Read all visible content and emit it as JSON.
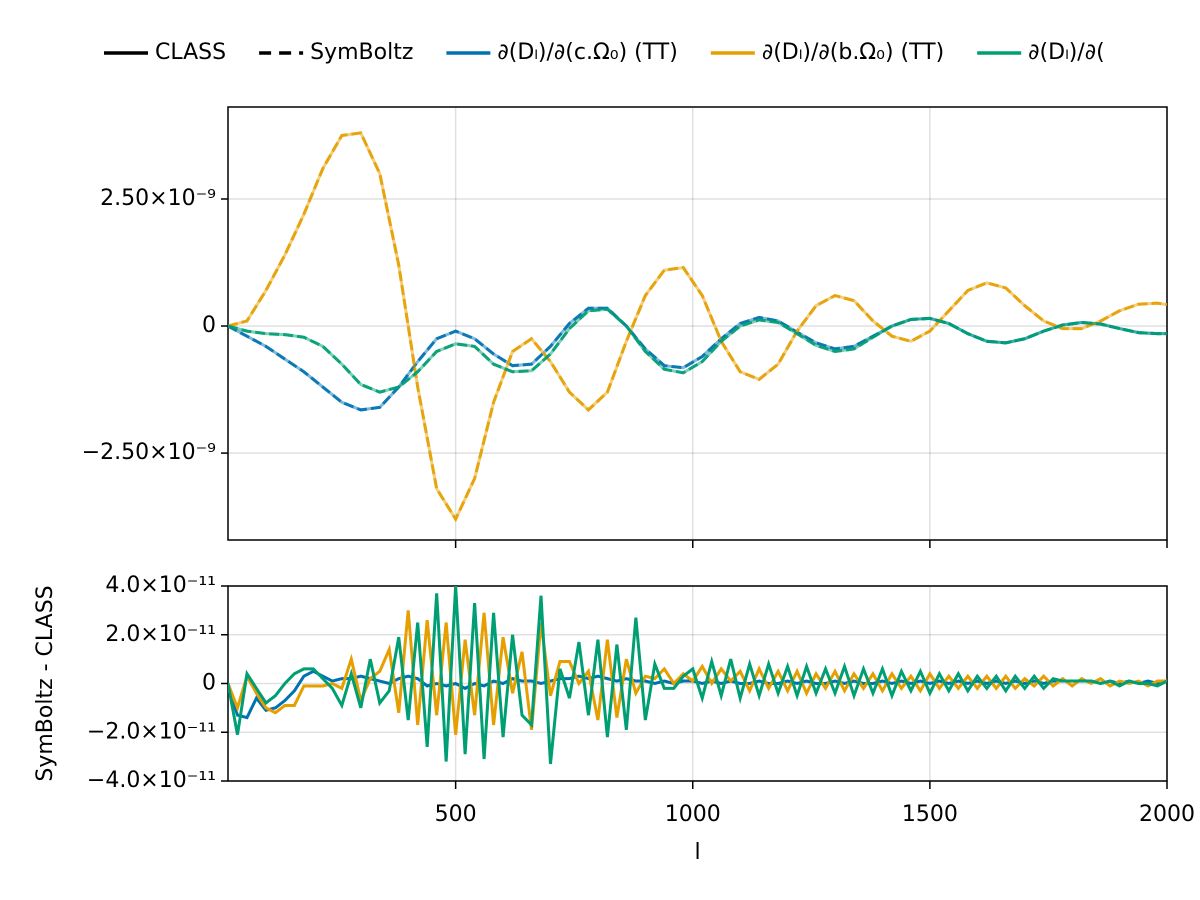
{
  "chart_data": [
    {
      "type": "line",
      "line_styles": [
        {
          "name": "CLASS",
          "dash": "solid"
        },
        {
          "name": "SymBoltz",
          "dash": "dashed"
        }
      ],
      "x": [
        20,
        60,
        100,
        140,
        180,
        220,
        260,
        300,
        340,
        380,
        420,
        460,
        500,
        540,
        580,
        620,
        660,
        700,
        740,
        780,
        820,
        860,
        900,
        940,
        980,
        1020,
        1060,
        1100,
        1140,
        1180,
        1220,
        1260,
        1300,
        1340,
        1380,
        1420,
        1460,
        1500,
        1540,
        1580,
        1620,
        1660,
        1700,
        1740,
        1780,
        1820,
        1860,
        1900,
        1940,
        1980,
        2000
      ],
      "series": [
        {
          "name": "∂(Dₗ)/∂(c.Ω₀) (TT)",
          "color": "#0072b2",
          "values": [
            0,
            -2e-10,
            -4e-10,
            -6.5e-10,
            -9e-10,
            -1.2e-09,
            -1.5e-09,
            -1.65e-09,
            -1.6e-09,
            -1.2e-09,
            -7e-10,
            -2.5e-10,
            -1e-10,
            -2.5e-10,
            -5.5e-10,
            -7.8e-10,
            -7.5e-10,
            -4e-10,
            5e-11,
            3.5e-10,
            3.5e-10,
            0,
            -4.5e-10,
            -7.8e-10,
            -8.2e-10,
            -6e-10,
            -2.5e-10,
            5e-11,
            1.7e-10,
            1e-10,
            -1.2e-10,
            -3.3e-10,
            -4.5e-10,
            -4e-10,
            -2e-10,
            0,
            1.3e-10,
            1.5e-10,
            5e-11,
            -1.5e-10,
            -3e-10,
            -3.3e-10,
            -2.5e-10,
            -1e-10,
            2e-11,
            7e-11,
            4e-11,
            -5e-11,
            -1.3e-10,
            -1.5e-10,
            -1.5e-10
          ]
        },
        {
          "name": "∂(Dₗ)/∂(b.Ω₀) (TT)",
          "color": "#e69f00",
          "values": [
            0,
            1e-10,
            7e-10,
            1.4e-09,
            2.2e-09,
            3.1e-09,
            3.75e-09,
            3.8e-09,
            3e-09,
            1.2e-09,
            -1.2e-09,
            -3.2e-09,
            -3.8e-09,
            -3e-09,
            -1.5e-09,
            -5e-10,
            -2.5e-10,
            -7e-10,
            -1.3e-09,
            -1.65e-09,
            -1.3e-09,
            -3e-10,
            6e-10,
            1.1e-09,
            1.15e-09,
            6e-10,
            -3e-10,
            -9e-10,
            -1.05e-09,
            -7.5e-10,
            -1e-10,
            4e-10,
            6e-10,
            5e-10,
            1e-10,
            -2e-10,
            -3e-10,
            -1e-10,
            3e-10,
            7e-10,
            8.5e-10,
            7.5e-10,
            4e-10,
            1e-10,
            -5e-11,
            -5e-11,
            1e-10,
            3e-10,
            4.3e-10,
            4.5e-10,
            4.2e-10
          ]
        },
        {
          "name": "∂(Dₗ)/∂(",
          "color": "#009e73",
          "values": [
            0,
            -1e-10,
            -1.5e-10,
            -1.7e-10,
            -2.2e-10,
            -4e-10,
            -7.5e-10,
            -1.15e-09,
            -1.3e-09,
            -1.2e-09,
            -9e-10,
            -5e-10,
            -3.5e-10,
            -4e-10,
            -7.5e-10,
            -9e-10,
            -8.8e-10,
            -5.5e-10,
            -5e-11,
            3e-10,
            3.3e-10,
            0,
            -5e-10,
            -8.5e-10,
            -9.2e-10,
            -7e-10,
            -3e-10,
            0,
            1.2e-10,
            7e-11,
            -1.5e-10,
            -3.8e-10,
            -5e-10,
            -4.5e-10,
            -2.2e-10,
            0,
            1.3e-10,
            1.5e-10,
            5e-11,
            -1.5e-10,
            -3e-10,
            -3.3e-10,
            -2.5e-10,
            -1e-10,
            2e-11,
            7e-11,
            4e-11,
            -5e-11,
            -1.3e-10,
            -1.5e-10,
            -1.5e-10
          ]
        }
      ],
      "xlim": [
        20,
        2000
      ],
      "xticks": [
        500,
        1000,
        1500,
        2000
      ],
      "ylim": [
        -4.21e-09,
        4.31e-09
      ],
      "yticks": [
        {
          "value": -2.5e-09,
          "label": "−2.50×10⁻⁹"
        },
        0,
        {
          "value": 2.5e-09,
          "label": "2.50×10⁻⁹"
        }
      ],
      "grid": true,
      "legend": "top"
    },
    {
      "type": "line",
      "x": [
        20,
        40,
        60,
        80,
        100,
        120,
        140,
        160,
        180,
        200,
        220,
        240,
        260,
        280,
        300,
        320,
        340,
        360,
        380,
        400,
        420,
        440,
        460,
        480,
        500,
        520,
        540,
        560,
        580,
        600,
        620,
        640,
        660,
        680,
        700,
        720,
        740,
        760,
        780,
        800,
        820,
        840,
        860,
        880,
        900,
        920,
        940,
        960,
        980,
        1000,
        1020,
        1040,
        1060,
        1080,
        1100,
        1120,
        1140,
        1160,
        1180,
        1200,
        1220,
        1240,
        1260,
        1280,
        1300,
        1320,
        1340,
        1360,
        1380,
        1400,
        1420,
        1440,
        1460,
        1480,
        1500,
        1520,
        1540,
        1560,
        1580,
        1600,
        1620,
        1640,
        1660,
        1680,
        1700,
        1720,
        1740,
        1760,
        1780,
        1800,
        1820,
        1840,
        1860,
        1880,
        1900,
        1920,
        1940,
        1960,
        1980,
        2000
      ],
      "series": [
        {
          "color": "#0072b2",
          "values": [
            0,
            -1.3e-11,
            -1.4e-11,
            -6e-12,
            -1.1e-11,
            -1e-11,
            -7e-12,
            -3e-12,
            3e-12,
            5e-12,
            3e-12,
            1e-12,
            2e-12,
            2e-12,
            3e-12,
            2e-12,
            1e-12,
            0,
            2e-12,
            3e-12,
            2e-12,
            -1e-12,
            0,
            -1e-12,
            0,
            -2e-12,
            0,
            -1e-12,
            1e-12,
            0,
            2e-12,
            1e-12,
            1e-12,
            0,
            1e-12,
            2e-12,
            2e-12,
            3e-12,
            2e-12,
            3e-12,
            2e-12,
            1e-12,
            2e-12,
            1e-12,
            1e-12,
            0,
            1e-12,
            0,
            1e-12,
            1e-12,
            0,
            1e-12,
            0,
            1e-12,
            0,
            0,
            1e-12,
            0,
            0,
            1e-12,
            0,
            1e-12,
            0,
            0,
            1e-12,
            0,
            1e-12,
            0,
            0,
            1e-12,
            0,
            1e-12,
            0,
            1e-12,
            0,
            1e-12,
            0,
            1e-12,
            0,
            1e-12,
            0,
            1e-12,
            0,
            1e-12,
            0,
            1e-12,
            0,
            1e-12,
            1e-12,
            1e-12,
            1e-12,
            1e-12,
            0,
            1e-12,
            0,
            1e-12,
            0,
            1e-12,
            0,
            1e-12
          ]
        },
        {
          "color": "#e69f00",
          "values": [
            0,
            -1e-11,
            3e-12,
            -4e-12,
            -1e-11,
            -1.2e-11,
            -9e-12,
            -9e-12,
            -1e-12,
            -1e-12,
            -1e-12,
            0,
            -2e-12,
            1e-11,
            -7e-12,
            2e-12,
            5e-12,
            1.4e-11,
            -1.2e-11,
            3e-11,
            -1.7e-11,
            2.6e-11,
            -1.3e-11,
            2.5e-11,
            -2.1e-11,
            1.8e-11,
            -1.3e-11,
            2.9e-11,
            -1.7e-11,
            1.9e-11,
            -4e-12,
            1.3e-11,
            -1.9e-11,
            2.5e-11,
            -5e-12,
            9e-12,
            9e-12,
            0,
            5e-12,
            -1.5e-11,
            1.8e-11,
            -1.4e-11,
            1e-11,
            -4e-12,
            3e-12,
            2e-12,
            6e-12,
            0,
            4e-12,
            1e-12,
            7e-12,
            0,
            6e-12,
            1e-12,
            5e-12,
            -3e-12,
            6e-12,
            -2e-12,
            5e-12,
            -3e-12,
            5e-12,
            -4e-12,
            4e-12,
            -2e-12,
            5e-12,
            -3e-12,
            4e-12,
            -2e-12,
            4e-12,
            -3e-12,
            4e-12,
            -2e-12,
            3e-12,
            -3e-12,
            4e-12,
            -2e-12,
            3e-12,
            -2e-12,
            3e-12,
            -2e-12,
            3e-12,
            -2e-12,
            3e-12,
            -2e-12,
            2e-12,
            -1e-12,
            3e-12,
            -1e-12,
            2e-12,
            -1e-12,
            2e-12,
            0,
            2e-12,
            -1e-12,
            1e-12,
            0,
            1e-12,
            -1e-12,
            1e-12,
            1e-12
          ]
        },
        {
          "color": "#009e73",
          "values": [
            0,
            -2.1e-11,
            4e-12,
            -2e-12,
            -8e-12,
            -5e-12,
            0,
            4e-12,
            6e-12,
            6e-12,
            2e-12,
            -2e-12,
            -9e-12,
            4e-12,
            -1e-11,
            1e-11,
            -8e-12,
            -3e-12,
            1.9e-11,
            -1.5e-11,
            2.5e-11,
            -2.6e-11,
            3.7e-11,
            -3.2e-11,
            4e-11,
            -2.9e-11,
            3.3e-11,
            -3.1e-11,
            2.9e-11,
            -2.2e-11,
            2e-11,
            -1.3e-11,
            -1.7e-11,
            3.6e-11,
            -3.3e-11,
            6e-12,
            -6e-12,
            1.7e-11,
            -1.3e-11,
            1.8e-11,
            -2.2e-11,
            1.6e-11,
            -1.9e-11,
            2.7e-11,
            -1.5e-11,
            8e-12,
            -2e-12,
            -2e-12,
            3e-12,
            6e-12,
            -6e-12,
            9e-12,
            -5e-12,
            1e-11,
            -6e-12,
            8e-12,
            -5e-12,
            8e-12,
            -4e-12,
            7e-12,
            -5e-12,
            7e-12,
            -4e-12,
            6e-12,
            -4e-12,
            7e-12,
            -5e-12,
            6e-12,
            -4e-12,
            6e-12,
            -5e-12,
            5e-12,
            -3e-12,
            5e-12,
            -4e-12,
            4e-12,
            -3e-12,
            4e-12,
            -3e-12,
            3e-12,
            -2e-12,
            3e-12,
            -3e-12,
            3e-12,
            -2e-12,
            3e-12,
            -2e-12,
            2e-12,
            1e-12,
            1e-12,
            1e-12,
            1e-12,
            0,
            1e-12,
            -1e-12,
            1e-12,
            0,
            0,
            -1e-12,
            1e-12
          ]
        }
      ],
      "xlabel": "l",
      "ylabel": "SymBoltz - CLASS",
      "xlim": [
        20,
        2000
      ],
      "xticks": [
        500,
        1000,
        1500,
        2000
      ],
      "ylim": [
        -4e-11,
        4e-11
      ],
      "yticks": [
        {
          "value": -4e-11,
          "label": "−4.0×10⁻¹¹"
        },
        {
          "value": -2e-11,
          "label": "−2.0×10⁻¹¹"
        },
        0,
        {
          "value": 2e-11,
          "label": "2.0×10⁻¹¹"
        },
        {
          "value": 4e-11,
          "label": "4.0×10⁻¹¹"
        }
      ],
      "grid": true
    }
  ]
}
